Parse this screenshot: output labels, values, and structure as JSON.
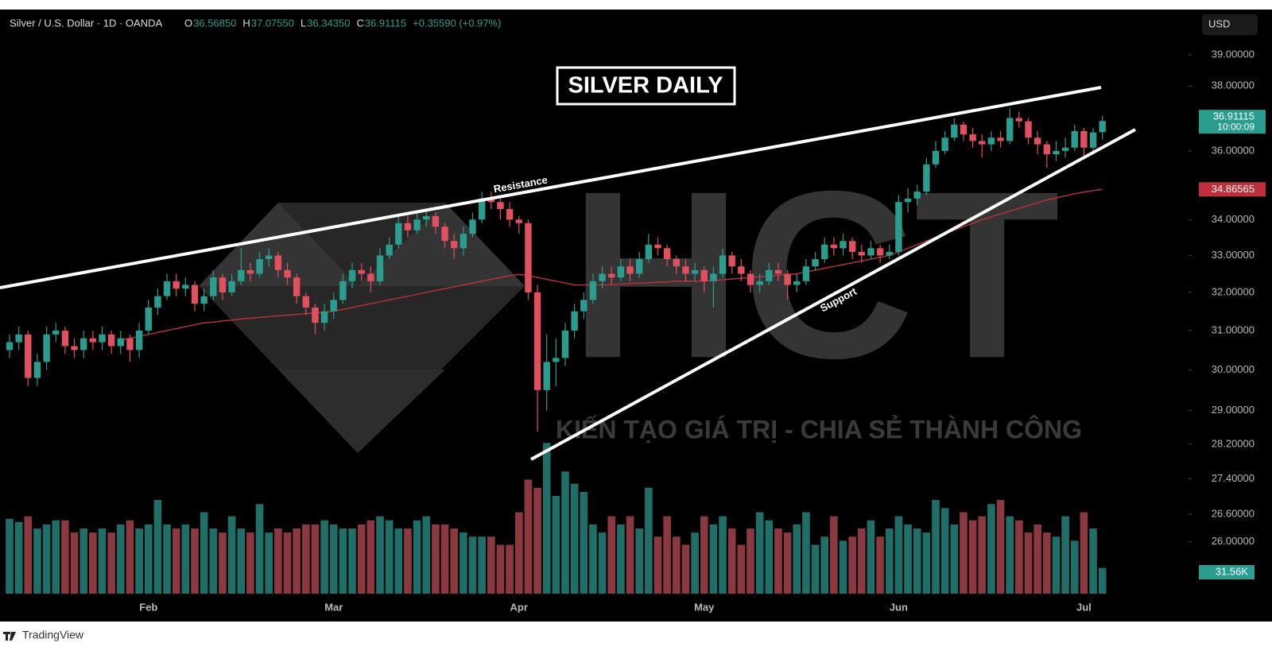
{
  "chart_data": {
    "type": "candlestick",
    "title": "SILVER DAILY",
    "symbol": "Silver / U.S. Dollar · 1D · OANDA",
    "legend_ohlc": [
      {
        "key": "O",
        "value": 36.5685,
        "label": "36.56850"
      },
      {
        "key": "H",
        "value": 37.0755,
        "label": "37.07550"
      },
      {
        "key": "L",
        "value": 36.3435,
        "label": "36.34350"
      },
      {
        "key": "C",
        "value": 36.91115,
        "label": "36.91115"
      }
    ],
    "change": "+0.35590 (+0.97%)",
    "currency": "USD",
    "countdown": "10:00:09",
    "annotations": [
      "Resistance",
      "Support"
    ],
    "watermark": "HCT",
    "tagline": "KIẾN TẠO GIÁ TRỊ - CHIA SẺ THÀNH CÔNG",
    "brand": "TradingView",
    "log_scale": true,
    "up_color": "#2a9d8f",
    "down_color": "#e0505e",
    "categories": [
      null,
      null,
      null,
      null,
      null,
      null,
      null,
      null,
      null,
      null,
      null,
      null,
      null,
      null,
      null,
      "Feb",
      null,
      null,
      null,
      null,
      null,
      null,
      null,
      null,
      null,
      null,
      null,
      null,
      null,
      null,
      null,
      null,
      null,
      null,
      null,
      "Mar",
      null,
      null,
      null,
      null,
      null,
      null,
      null,
      null,
      null,
      null,
      null,
      null,
      null,
      null,
      null,
      null,
      null,
      null,
      null,
      "Apr",
      null,
      null,
      null,
      null,
      null,
      null,
      null,
      null,
      null,
      null,
      null,
      null,
      null,
      null,
      null,
      null,
      null,
      null,
      null,
      "May",
      null,
      null,
      null,
      null,
      null,
      null,
      null,
      null,
      null,
      null,
      null,
      null,
      null,
      null,
      null,
      null,
      null,
      null,
      null,
      null,
      "Jun",
      null,
      null,
      null,
      null,
      null,
      null,
      null,
      null,
      null,
      null,
      null,
      null,
      null,
      null,
      null,
      null,
      null,
      null,
      null,
      "Jul",
      null,
      null
    ],
    "open": [
      30.5,
      30.7,
      30.9,
      29.8,
      30.2,
      30.9,
      31.0,
      30.6,
      30.5,
      30.8,
      30.7,
      30.9,
      30.6,
      30.8,
      30.5,
      31.0,
      31.6,
      31.9,
      32.3,
      32.1,
      32.2,
      31.7,
      31.9,
      32.4,
      32.0,
      32.3,
      32.6,
      32.5,
      32.9,
      33.0,
      32.6,
      32.4,
      31.9,
      31.6,
      31.2,
      31.5,
      31.8,
      32.3,
      32.6,
      32.5,
      32.3,
      33.0,
      33.3,
      33.9,
      33.7,
      34.0,
      34.1,
      33.8,
      33.4,
      33.2,
      33.6,
      34.0,
      34.6,
      34.5,
      34.3,
      34.0,
      33.9,
      32.0,
      29.5,
      30.2,
      30.3,
      31.0,
      31.5,
      31.8,
      32.3,
      32.5,
      32.4,
      32.7,
      32.5,
      32.9,
      33.3,
      33.2,
      32.9,
      32.7,
      32.5,
      32.6,
      32.3,
      32.5,
      33.0,
      32.7,
      32.5,
      32.2,
      32.3,
      32.6,
      32.5,
      32.2,
      32.3,
      32.7,
      32.9,
      33.3,
      33.2,
      33.4,
      33.1,
      33.0,
      33.2,
      33.0,
      33.1,
      34.5,
      34.6,
      34.8,
      35.6,
      36.0,
      36.4,
      36.8,
      36.5,
      36.3,
      36.2,
      36.4,
      36.3,
      37.0,
      36.9,
      36.4,
      36.2,
      35.9,
      36.0,
      36.1,
      36.6,
      36.1,
      36.5685
    ],
    "high": [
      30.9,
      31.1,
      31.0,
      30.4,
      31.1,
      31.2,
      31.1,
      30.8,
      31.0,
      31.0,
      31.1,
      31.0,
      31.0,
      30.9,
      31.2,
      31.8,
      32.1,
      32.5,
      32.5,
      32.4,
      32.3,
      32.1,
      32.6,
      32.5,
      32.5,
      33.2,
      32.8,
      33.1,
      33.2,
      33.1,
      32.8,
      32.5,
      32.0,
      31.7,
      31.7,
      32.0,
      32.5,
      32.8,
      32.8,
      32.7,
      33.2,
      33.5,
      34.1,
      34.1,
      34.2,
      34.3,
      34.2,
      33.9,
      33.6,
      33.8,
      34.2,
      34.8,
      34.8,
      34.7,
      34.5,
      34.1,
      34.0,
      32.2,
      30.9,
      30.8,
      31.2,
      31.7,
      32.0,
      32.5,
      32.7,
      32.7,
      32.9,
      32.9,
      33.1,
      33.6,
      33.5,
      33.3,
      33.0,
      32.9,
      32.8,
      32.7,
      32.7,
      33.2,
      33.1,
      32.9,
      32.6,
      32.5,
      32.8,
      32.8,
      32.6,
      32.5,
      32.9,
      33.1,
      33.5,
      33.5,
      33.6,
      33.5,
      33.3,
      33.4,
      33.3,
      33.3,
      34.7,
      34.9,
      35.0,
      35.8,
      36.3,
      36.6,
      37.0,
      36.9,
      36.7,
      36.5,
      36.6,
      36.6,
      37.3,
      37.2,
      37.0,
      36.6,
      36.3,
      36.3,
      36.4,
      36.8,
      36.7,
      36.7,
      37.0755
    ],
    "low": [
      30.3,
      30.5,
      29.6,
      29.6,
      30.0,
      30.7,
      30.4,
      30.3,
      30.3,
      30.5,
      30.5,
      30.4,
      30.4,
      30.2,
      30.3,
      30.9,
      31.4,
      31.8,
      31.9,
      31.9,
      31.5,
      31.5,
      31.8,
      31.8,
      31.9,
      32.2,
      32.3,
      32.4,
      32.7,
      32.4,
      32.2,
      31.7,
      31.4,
      30.9,
      31.0,
      31.3,
      31.7,
      32.1,
      32.3,
      32.0,
      32.2,
      32.9,
      33.2,
      33.5,
      33.6,
      33.8,
      33.6,
      33.2,
      32.9,
      33.0,
      33.5,
      33.9,
      34.3,
      34.0,
      33.8,
      33.6,
      31.8,
      28.5,
      29.0,
      29.6,
      30.1,
      30.8,
      31.3,
      31.7,
      32.1,
      32.2,
      32.3,
      32.3,
      32.4,
      32.8,
      33.0,
      32.7,
      32.5,
      32.3,
      32.3,
      32.0,
      31.6,
      32.4,
      32.5,
      32.3,
      32.0,
      32.0,
      32.2,
      32.3,
      31.8,
      32.0,
      32.2,
      32.6,
      32.8,
      33.0,
      33.0,
      32.9,
      32.8,
      32.9,
      32.8,
      32.9,
      33.0,
      34.2,
      34.4,
      34.7,
      35.5,
      35.9,
      36.3,
      36.3,
      36.1,
      35.8,
      36.0,
      36.1,
      36.2,
      36.7,
      36.2,
      35.9,
      35.5,
      35.7,
      35.8,
      36.0,
      35.8,
      35.9,
      36.3435
    ],
    "close": [
      30.7,
      30.9,
      29.8,
      30.2,
      30.9,
      31.0,
      30.6,
      30.5,
      30.8,
      30.7,
      30.9,
      30.6,
      30.8,
      30.5,
      31.0,
      31.6,
      31.9,
      32.3,
      32.1,
      32.2,
      31.7,
      31.9,
      32.4,
      32.0,
      32.3,
      32.6,
      32.5,
      32.9,
      33.0,
      32.6,
      32.4,
      31.9,
      31.6,
      31.2,
      31.5,
      31.8,
      32.3,
      32.6,
      32.5,
      32.3,
      33.0,
      33.3,
      33.9,
      33.7,
      34.0,
      34.1,
      33.8,
      33.4,
      33.2,
      33.6,
      34.0,
      34.6,
      34.5,
      34.3,
      34.0,
      33.9,
      32.0,
      29.5,
      30.2,
      30.3,
      31.0,
      31.5,
      31.8,
      32.3,
      32.5,
      32.4,
      32.7,
      32.5,
      32.9,
      33.3,
      33.2,
      32.9,
      32.7,
      32.5,
      32.6,
      32.3,
      32.5,
      33.0,
      32.7,
      32.5,
      32.2,
      32.3,
      32.6,
      32.5,
      32.2,
      32.3,
      32.7,
      32.9,
      33.3,
      33.2,
      33.4,
      33.1,
      33.0,
      33.2,
      33.0,
      33.1,
      34.5,
      34.6,
      34.8,
      35.6,
      36.0,
      36.4,
      36.8,
      36.5,
      36.3,
      36.2,
      36.4,
      36.3,
      37.0,
      36.9,
      36.4,
      36.2,
      35.9,
      36.0,
      36.1,
      36.6,
      36.1,
      36.56,
      36.91115
    ],
    "ma": {
      "color": "#b0323c",
      "values": [
        null,
        null,
        null,
        null,
        null,
        null,
        null,
        null,
        null,
        null,
        null,
        null,
        30.75,
        30.8,
        30.85,
        30.9,
        30.95,
        31.0,
        31.05,
        31.1,
        31.15,
        31.2,
        31.22,
        31.25,
        31.27,
        31.3,
        31.32,
        31.34,
        31.36,
        31.38,
        31.4,
        31.42,
        31.44,
        31.46,
        31.48,
        31.5,
        31.55,
        31.6,
        31.65,
        31.7,
        31.75,
        31.8,
        31.85,
        31.9,
        31.95,
        32.0,
        32.05,
        32.1,
        32.15,
        32.2,
        32.25,
        32.3,
        32.35,
        32.4,
        32.45,
        32.48,
        32.45,
        32.4,
        32.35,
        32.3,
        32.25,
        32.2,
        32.2,
        32.2,
        32.2,
        32.2,
        32.22,
        32.24,
        32.25,
        32.26,
        32.27,
        32.28,
        32.3,
        32.3,
        32.3,
        32.3,
        32.32,
        32.34,
        32.36,
        32.38,
        32.4,
        32.42,
        32.44,
        32.46,
        32.48,
        32.5,
        32.55,
        32.6,
        32.65,
        32.7,
        32.75,
        32.8,
        32.85,
        32.9,
        32.95,
        33.0,
        33.1,
        33.2,
        33.3,
        33.4,
        33.5,
        33.6,
        33.7,
        33.8,
        33.9,
        34.0,
        34.08,
        34.16,
        34.24,
        34.32,
        34.4,
        34.48,
        34.56,
        34.62,
        34.68,
        34.74,
        34.79,
        34.83,
        34.86565
      ]
    },
    "volume": {
      "values": [
        92000,
        88000,
        95000,
        80000,
        85000,
        90000,
        90000,
        75000,
        80000,
        75000,
        80000,
        75000,
        85000,
        90000,
        80000,
        85000,
        115000,
        85000,
        80000,
        85000,
        80000,
        100000,
        80000,
        75000,
        95000,
        80000,
        75000,
        110000,
        75000,
        80000,
        75000,
        80000,
        85000,
        85000,
        90000,
        85000,
        80000,
        80000,
        85000,
        90000,
        95000,
        90000,
        80000,
        80000,
        90000,
        95000,
        85000,
        85000,
        80000,
        75000,
        70000,
        70000,
        70000,
        60000,
        60000,
        100000,
        140000,
        130000,
        185000,
        120000,
        150000,
        135000,
        125000,
        85000,
        75000,
        95000,
        85000,
        95000,
        80000,
        130000,
        70000,
        95000,
        70000,
        60000,
        75000,
        95000,
        85000,
        95000,
        80000,
        60000,
        80000,
        100000,
        90000,
        80000,
        75000,
        85000,
        100000,
        60000,
        70000,
        95000,
        65000,
        70000,
        80000,
        90000,
        70000,
        80000,
        95000,
        85000,
        80000,
        75000,
        115000,
        105000,
        85000,
        100000,
        90000,
        95000,
        110000,
        115000,
        95000,
        90000,
        75000,
        85000,
        75000,
        70000,
        95000,
        65000,
        100000,
        80000,
        31560
      ],
      "value_labels": [
        null,
        null,
        null,
        null,
        null,
        null,
        null,
        null,
        null,
        null,
        null,
        null,
        null,
        null,
        null,
        null,
        null,
        null,
        null,
        null,
        null,
        null,
        null,
        null,
        null,
        null,
        null,
        null,
        null,
        null,
        null,
        null,
        null,
        null,
        null,
        null,
        null,
        null,
        null,
        null,
        null,
        null,
        null,
        null,
        null,
        null,
        null,
        null,
        null,
        null,
        null,
        null,
        null,
        null,
        null,
        null,
        null,
        null,
        null,
        null,
        null,
        null,
        null,
        null,
        null,
        null,
        null,
        null,
        null,
        null,
        null,
        null,
        null,
        null,
        null,
        null,
        null,
        null,
        null,
        null,
        null,
        null,
        null,
        null,
        null,
        null,
        null,
        null,
        null,
        null,
        null,
        null,
        null,
        null,
        null,
        null,
        null,
        null,
        null,
        null,
        null,
        null,
        null,
        null,
        null,
        null,
        null,
        null,
        null,
        null,
        null,
        null,
        null,
        null,
        null,
        null,
        null,
        null,
        "31.56K"
      ],
      "lim": [
        0,
        200000
      ],
      "up_color": "#1f6f68",
      "down_color": "#8c3840"
    },
    "ylim": [
      24.85,
      40.5
    ],
    "yticks": [
      {
        "value": 39,
        "label": "39.00000"
      },
      {
        "value": 38,
        "label": "38.00000"
      },
      {
        "value": 36,
        "label": "36.00000"
      },
      {
        "value": 34,
        "label": "34.00000"
      },
      {
        "value": 33,
        "label": "33.00000"
      },
      {
        "value": 32,
        "label": "32.00000"
      },
      {
        "value": 31,
        "label": "31.00000"
      },
      {
        "value": 30,
        "label": "30.00000"
      },
      {
        "value": 29,
        "label": "29.00000"
      },
      {
        "value": 28.2,
        "label": "28.20000"
      },
      {
        "value": 27.4,
        "label": "27.40000"
      },
      {
        "value": 26.6,
        "label": "26.60000"
      },
      {
        "value": 26,
        "label": "26.00000"
      }
    ]
  }
}
